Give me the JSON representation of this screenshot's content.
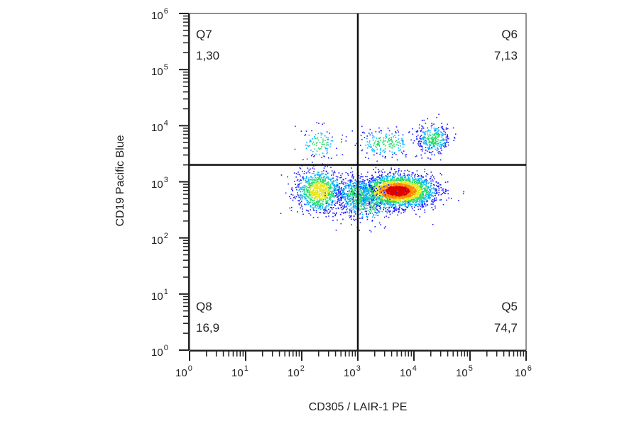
{
  "chart_data": {
    "type": "scatter",
    "subtype": "flow-cytometry-density-dotplot",
    "xlabel": "CD305 / LAIR-1 PE",
    "ylabel": "CD19 Pacific Blue",
    "x_scale": "log",
    "y_scale": "log",
    "xlim": [
      1,
      1000000
    ],
    "ylim": [
      1,
      1000000
    ],
    "x_ticks": [
      {
        "base": "10",
        "exp": "0",
        "value": 1
      },
      {
        "base": "10",
        "exp": "1",
        "value": 10
      },
      {
        "base": "10",
        "exp": "2",
        "value": 100
      },
      {
        "base": "10",
        "exp": "3",
        "value": 1000
      },
      {
        "base": "10",
        "exp": "4",
        "value": 10000
      },
      {
        "base": "10",
        "exp": "5",
        "value": 100000
      },
      {
        "base": "10",
        "exp": "6",
        "value": 1000000
      }
    ],
    "y_ticks": [
      {
        "base": "10",
        "exp": "0",
        "value": 1
      },
      {
        "base": "10",
        "exp": "1",
        "value": 10
      },
      {
        "base": "10",
        "exp": "2",
        "value": 100
      },
      {
        "base": "10",
        "exp": "3",
        "value": 1000
      },
      {
        "base": "10",
        "exp": "4",
        "value": 10000
      },
      {
        "base": "10",
        "exp": "5",
        "value": 100000
      },
      {
        "base": "10",
        "exp": "6",
        "value": 1000000
      }
    ],
    "gate": {
      "x": 1000,
      "y": 2000
    },
    "quadrants": [
      {
        "name": "Q7",
        "value": "1,30",
        "position": "top-left"
      },
      {
        "name": "Q6",
        "value": "7,13",
        "position": "top-right"
      },
      {
        "name": "Q8",
        "value": "16,9",
        "position": "bottom-left"
      },
      {
        "name": "Q5",
        "value": "74,7",
        "position": "bottom-right"
      }
    ],
    "populations": [
      {
        "center_x": 5000,
        "center_y": 700,
        "share": 0.55
      },
      {
        "center_x": 200,
        "center_y": 700,
        "share": 0.18
      },
      {
        "center_x": 900,
        "center_y": 600,
        "share": 0.1
      },
      {
        "center_x": 22000,
        "center_y": 6000,
        "share": 0.06
      },
      {
        "center_x": 3000,
        "center_y": 5000,
        "share": 0.04
      },
      {
        "center_x": 200,
        "center_y": 5000,
        "share": 0.02
      },
      {
        "center_x": 1500,
        "center_y": 400,
        "share": 0.05
      }
    ],
    "density_colors": [
      "#1a1aff",
      "#00b4ff",
      "#22dd66",
      "#e8e81a",
      "#ff8800",
      "#e00000"
    ]
  }
}
